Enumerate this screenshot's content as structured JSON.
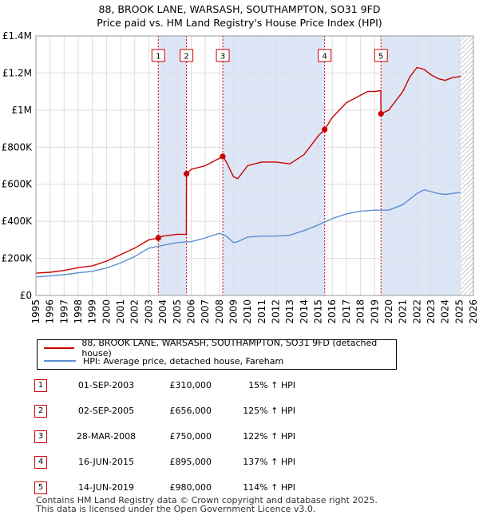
{
  "title_line1": "88, BROOK LANE, WARSASH, SOUTHAMPTON, SO31 9FD",
  "title_line2": "Price paid vs. HM Land Registry's House Price Index (HPI)",
  "colors": {
    "property": "#cc0000",
    "hpi": "#5b8fd0",
    "shade": "#dde6f7",
    "grid": "#dddddd",
    "marker_line": "#cc0000"
  },
  "legend": {
    "items": [
      {
        "label": "88, BROOK LANE, WARSASH, SOUTHAMPTON, SO31 9FD (detached house)",
        "color": "#cc0000"
      },
      {
        "label": "HPI: Average price, detached house, Fareham",
        "color": "#5b8fd0"
      }
    ]
  },
  "sales": [
    {
      "num": "1",
      "date": "01-SEP-2003",
      "price": "£310,000",
      "hpi": "15% ↑ HPI"
    },
    {
      "num": "2",
      "date": "02-SEP-2005",
      "price": "£656,000",
      "hpi": "125% ↑ HPI"
    },
    {
      "num": "3",
      "date": "28-MAR-2008",
      "price": "£750,000",
      "hpi": "122% ↑ HPI"
    },
    {
      "num": "4",
      "date": "16-JUN-2015",
      "price": "£895,000",
      "hpi": "137% ↑ HPI"
    },
    {
      "num": "5",
      "date": "14-JUN-2019",
      "price": "£980,000",
      "hpi": "114% ↑ HPI"
    }
  ],
  "footer_line1": "Contains HM Land Registry data © Crown copyright and database right 2025.",
  "footer_line2": "This data is licensed under the Open Government Licence v3.0.",
  "chart_data": {
    "type": "line",
    "xlim": [
      1995,
      2026
    ],
    "ylim": [
      0,
      1400000
    ],
    "x_ticks": [
      1995,
      1996,
      1997,
      1998,
      1999,
      2000,
      2001,
      2002,
      2003,
      2004,
      2005,
      2006,
      2007,
      2008,
      2009,
      2010,
      2011,
      2012,
      2013,
      2014,
      2015,
      2016,
      2017,
      2018,
      2019,
      2020,
      2021,
      2022,
      2023,
      2024,
      2025,
      2026
    ],
    "y_ticks": [
      {
        "value": 0,
        "label": "£0"
      },
      {
        "value": 200000,
        "label": "£200K"
      },
      {
        "value": 400000,
        "label": "£400K"
      },
      {
        "value": 600000,
        "label": "£600K"
      },
      {
        "value": 800000,
        "label": "£800K"
      },
      {
        "value": 1000000,
        "label": "£1M"
      },
      {
        "value": 1200000,
        "label": "£1.2M"
      },
      {
        "value": 1400000,
        "label": "£1.4M"
      }
    ],
    "grid": true,
    "sale_markers": [
      {
        "label": "1",
        "x": 2003.67,
        "value": 310000
      },
      {
        "label": "2",
        "x": 2005.67,
        "value": 656000
      },
      {
        "label": "3",
        "x": 2008.24,
        "value": 750000
      },
      {
        "label": "4",
        "x": 2015.46,
        "value": 895000
      },
      {
        "label": "5",
        "x": 2019.45,
        "value": 980000
      }
    ],
    "shaded_ranges": [
      [
        2003.67,
        2005.67
      ],
      [
        2008.24,
        2015.46
      ],
      [
        2019.45,
        2025.1
      ]
    ],
    "hatch_from": 2025.1,
    "series": [
      {
        "name": "88, BROOK LANE, WARSASH, SOUTHAMPTON, SO31 9FD (detached house)",
        "color": "#cc0000",
        "x": [
          1995,
          1996,
          1997,
          1998,
          1999,
          2000,
          2001,
          2002,
          2003,
          2003.67,
          2004,
          2005,
          2005.66,
          2005.67,
          2006,
          2007,
          2008,
          2008.24,
          2008.5,
          2009,
          2009.3,
          2010,
          2011,
          2012,
          2013,
          2014,
          2015,
          2015.46,
          2016,
          2017,
          2018,
          2018.5,
          2019,
          2019.44,
          2019.45,
          2020,
          2021,
          2021.5,
          2022,
          2022.5,
          2023,
          2023.5,
          2024,
          2024.5,
          2025,
          2025.1
        ],
        "values": [
          120000,
          125000,
          135000,
          150000,
          160000,
          185000,
          220000,
          255000,
          300000,
          310000,
          320000,
          330000,
          330000,
          656000,
          680000,
          700000,
          740000,
          750000,
          720000,
          640000,
          630000,
          700000,
          720000,
          720000,
          710000,
          760000,
          860000,
          895000,
          960000,
          1040000,
          1080000,
          1100000,
          1100000,
          1105000,
          980000,
          1000000,
          1100000,
          1180000,
          1230000,
          1220000,
          1190000,
          1170000,
          1160000,
          1175000,
          1180000,
          1185000
        ]
      },
      {
        "name": "HPI: Average price, detached house, Fareham",
        "color": "#5b8fd0",
        "x": [
          1995,
          1996,
          1997,
          1998,
          1999,
          2000,
          2001,
          2002,
          2003,
          2004,
          2005,
          2006,
          2007,
          2008,
          2008.5,
          2009,
          2009.3,
          2010,
          2011,
          2012,
          2013,
          2014,
          2015,
          2016,
          2017,
          2018,
          2019,
          2020,
          2021,
          2021.5,
          2022,
          2022.5,
          2023,
          2023.5,
          2024,
          2024.5,
          2025,
          2025.1
        ],
        "values": [
          100000,
          105000,
          112000,
          122000,
          130000,
          148000,
          175000,
          210000,
          255000,
          270000,
          285000,
          290000,
          310000,
          335000,
          320000,
          285000,
          290000,
          315000,
          320000,
          320000,
          325000,
          350000,
          380000,
          415000,
          440000,
          455000,
          460000,
          460000,
          490000,
          520000,
          550000,
          570000,
          560000,
          550000,
          545000,
          550000,
          555000,
          555000
        ]
      }
    ]
  }
}
